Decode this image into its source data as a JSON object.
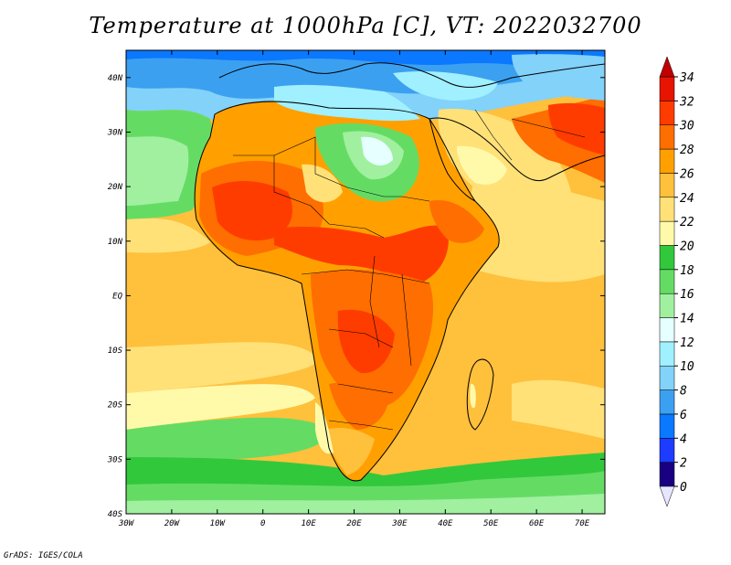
{
  "title": "Temperature at 1000hPa [C], VT: 2022032700",
  "footer": "GrADS: IGES/COLA",
  "map": {
    "lat_labels": [
      "40N",
      "30N",
      "20N",
      "10N",
      "EQ",
      "10S",
      "20S",
      "30S",
      "40S"
    ],
    "lon_labels": [
      "30W",
      "20W",
      "10W",
      "0",
      "10E",
      "20E",
      "30E",
      "40E",
      "50E",
      "60E",
      "70E"
    ],
    "extent": {
      "lon_min": -30,
      "lon_max": 75,
      "lat_min": -40,
      "lat_max": 45
    }
  },
  "colorbar": {
    "labels": [
      "34",
      "32",
      "30",
      "28",
      "26",
      "24",
      "22",
      "20",
      "18",
      "16",
      "14",
      "12",
      "10",
      "8",
      "6",
      "4",
      "2",
      "0"
    ],
    "colors": [
      "#190080",
      "#1e3cff",
      "#0a78ff",
      "#3ca0f0",
      "#82d2fa",
      "#a0f0ff",
      "#e6ffff",
      "#a0f0a0",
      "#64dc64",
      "#32c83c",
      "#fffaaa",
      "#ffe178",
      "#ffc03c",
      "#ffa000",
      "#ff6e00",
      "#ff3c00",
      "#e61400"
    ],
    "under_color": "#e6e6ff",
    "over_color": "#c00000"
  }
}
